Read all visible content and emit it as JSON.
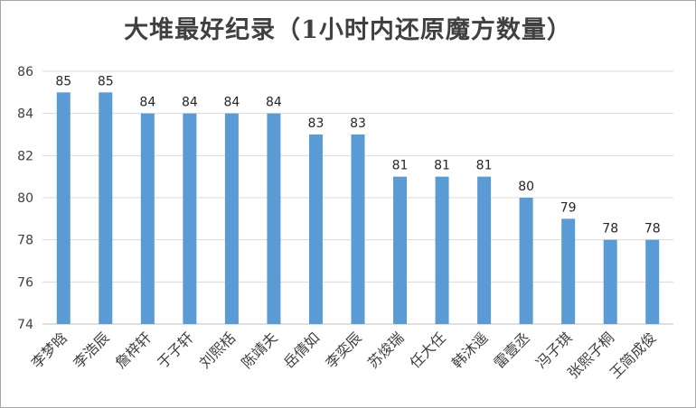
{
  "chart_data": {
    "type": "bar",
    "title": "大堆最好纪录（1小时内还原魔方数量）",
    "categories": [
      "李梦晗",
      "李浩辰",
      "詹梓轩",
      "于子轩",
      "刘熙栝",
      "陈靖夫",
      "岳倩如",
      "李奕辰",
      "苏焌瑞",
      "任大任",
      "韩沐遥",
      "雷壹丞",
      "冯子琪",
      "张熙子桐",
      "王简成俊"
    ],
    "values": [
      85,
      85,
      84,
      84,
      84,
      84,
      83,
      83,
      81,
      81,
      81,
      80,
      79,
      78,
      78
    ],
    "ylim": [
      74,
      86
    ],
    "yticks": [
      74,
      76,
      78,
      80,
      82,
      84,
      86
    ],
    "grid": true,
    "legend": "none",
    "xlabel": "",
    "ylabel": "",
    "colors": {
      "bar": "#5b9bd5",
      "grid": "#d9d9d9",
      "axis": "#bfbfbf"
    }
  }
}
